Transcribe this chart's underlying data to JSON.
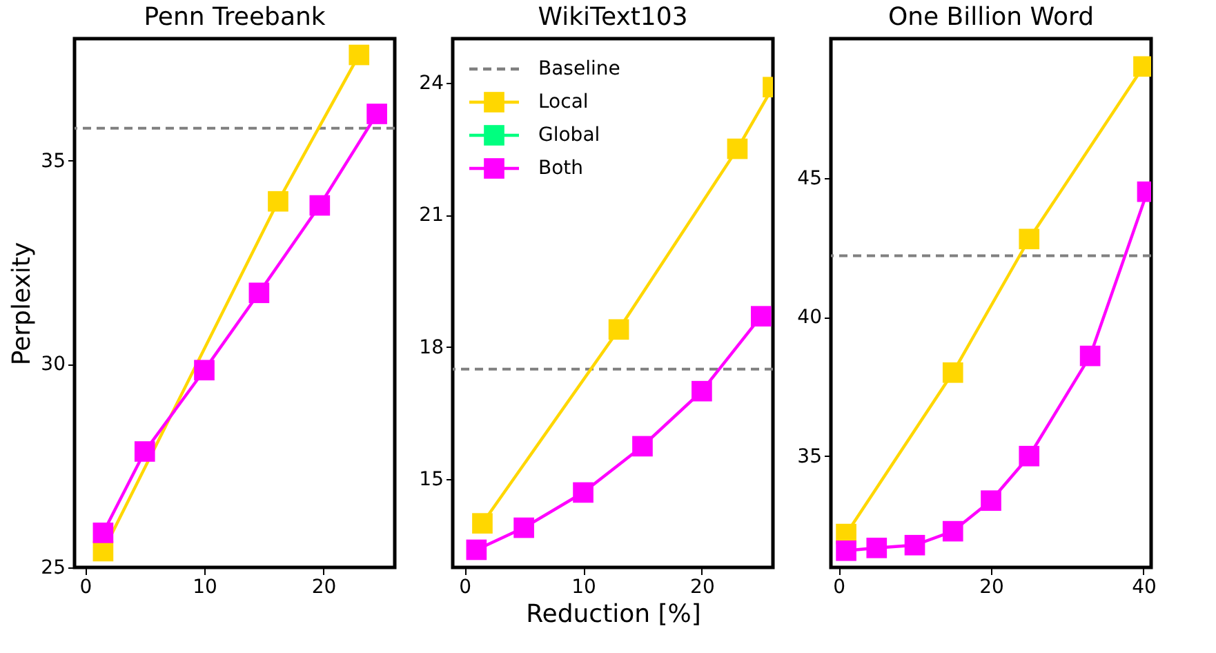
{
  "chart_data": [
    {
      "type": "line",
      "title": "Penn Treebank",
      "ylabel": "Perplexity",
      "marker": "square",
      "grid": false,
      "legend": false,
      "xlim": [
        -0.9,
        26
      ],
      "xticks": [
        0,
        10,
        20
      ],
      "ylim": [
        25,
        38
      ],
      "yticks": [
        25,
        30,
        35
      ],
      "ref_lines": [
        {
          "axis": "y",
          "value": 35.8,
          "color": "#808080",
          "line_style": "dashed"
        }
      ],
      "series": [
        {
          "color": "#ffd700",
          "x": [
            1.5,
            5,
            16.2,
            23
          ],
          "values": [
            25.4,
            null,
            34.0,
            37.6
          ]
        },
        {
          "color": "#ff00ff",
          "x": [
            1.5,
            5,
            10,
            14.6,
            19.7,
            24.5
          ],
          "values": [
            25.85,
            27.85,
            29.85,
            31.75,
            33.9,
            36.15
          ]
        }
      ]
    },
    {
      "type": "line",
      "title": "WikiText103",
      "xlabel": "Reduction [%]",
      "marker": "square",
      "grid": false,
      "legend": "top left",
      "xlim": [
        -1,
        26
      ],
      "xticks": [
        0,
        10,
        20
      ],
      "ylim": [
        13,
        25
      ],
      "yticks": [
        15,
        18,
        21,
        24
      ],
      "ref_lines": [
        {
          "axis": "y",
          "value": 17.5,
          "label": "Baseline",
          "color": "#808080",
          "line_style": "dashed"
        }
      ],
      "series": [
        {
          "name": "Local",
          "color": "#ffd700",
          "x": [
            1.5,
            13,
            23,
            26
          ],
          "values": [
            14.0,
            18.4,
            22.5,
            23.9
          ]
        },
        {
          "name": "Global",
          "color": "#00ff7f"
        },
        {
          "name": "Both",
          "color": "#ff00ff",
          "x": [
            1,
            5,
            10,
            15,
            20,
            25
          ],
          "values": [
            13.4,
            13.9,
            14.7,
            15.75,
            17.0,
            18.7
          ]
        }
      ]
    },
    {
      "type": "line",
      "title": "One Billion Word",
      "marker": "square",
      "grid": false,
      "legend": false,
      "xlim": [
        -1,
        41
      ],
      "xticks": [
        0,
        20,
        40
      ],
      "ylim": [
        31,
        50
      ],
      "yticks": [
        35,
        40,
        45
      ],
      "ref_lines": [
        {
          "axis": "y",
          "value": 42.2,
          "color": "#808080",
          "line_style": "dashed"
        }
      ],
      "series": [
        {
          "color": "#ffd700",
          "x": [
            1,
            15,
            25,
            40
          ],
          "values": [
            32.2,
            38.0,
            42.8,
            49.0
          ]
        },
        {
          "color": "#ff00ff",
          "x": [
            1,
            5,
            10,
            15,
            20,
            25,
            33,
            40.5
          ],
          "values": [
            31.6,
            31.7,
            31.8,
            32.3,
            33.4,
            35.0,
            38.6,
            44.5
          ]
        }
      ]
    }
  ]
}
